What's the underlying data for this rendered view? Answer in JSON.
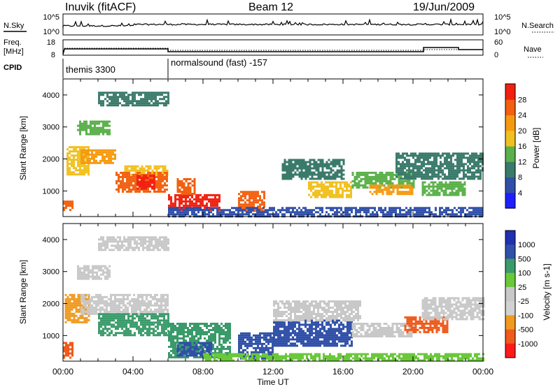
{
  "header": {
    "station": "Inuvik (fitACF)",
    "beam": "Beam 12",
    "date": "19/Jun/2009"
  },
  "nsky_panel": {
    "left_label": "N.Sky",
    "left_ticks": [
      "10^5",
      "10^0"
    ],
    "right_ticks": [
      "10^5",
      "10^0"
    ],
    "right_label": "N.Search",
    "right_legend_line": "dotted"
  },
  "freq_panel": {
    "left_label_line1": "Freq.",
    "left_label_line2": "[MHz]",
    "left_ticks": [
      18,
      8
    ],
    "right_ticks": [
      60,
      0
    ],
    "right_label": "Nave",
    "right_legend_line": "dotted"
  },
  "cpid_panel": {
    "label": "CPID",
    "segments": [
      {
        "start_h": 0,
        "end_h": 6,
        "name": "themis 3300"
      },
      {
        "start_h": 6,
        "end_h": 24,
        "name": "normalsound (fast) -157"
      }
    ]
  },
  "x_axis": {
    "label": "Time UT",
    "ticks": [
      "00:00",
      "04:00",
      "08:00",
      "12:00",
      "16:00",
      "20:00",
      "00:00"
    ],
    "range_hours": [
      0,
      24
    ]
  },
  "colors": {
    "power": [
      "#1e1eff",
      "#2f4fa8",
      "#3a7a6a",
      "#5ab04a",
      "#f0c020",
      "#f59a10",
      "#f26010",
      "#f22010"
    ],
    "velocity": [
      "#ff1a1a",
      "#f05a1a",
      "#f09a20",
      "#d2d2d2",
      "#c8c8c8",
      "#6ac83a",
      "#3a9a6a",
      "#2f4fa8",
      "#2030b0"
    ]
  },
  "chart_data": [
    {
      "type": "heatmap",
      "title": "Power",
      "ylabel": "Slant Range [km]",
      "xlabel": "Time UT",
      "ylim": [
        200,
        4500
      ],
      "y_ticks": [
        1000,
        2000,
        3000,
        4000
      ],
      "colorbar_label": "Power [dB]",
      "colorbar_ticks": [
        4,
        8,
        12,
        16,
        20,
        24,
        28
      ],
      "colorbar_range": [
        0,
        30
      ],
      "regions": [
        {
          "t0": 0.0,
          "t1": 0.6,
          "r0": 400,
          "r1": 700,
          "value": 26
        },
        {
          "t0": 0.2,
          "t1": 1.5,
          "r0": 1500,
          "r1": 2400,
          "value": 16
        },
        {
          "t0": 1.0,
          "t1": 3.0,
          "r0": 1900,
          "r1": 2300,
          "value": 22
        },
        {
          "t0": 0.8,
          "t1": 2.7,
          "r0": 2800,
          "r1": 3200,
          "value": 14
        },
        {
          "t0": 3.5,
          "t1": 6.0,
          "r0": 1500,
          "r1": 1800,
          "value": 18
        },
        {
          "t0": 3.0,
          "t1": 6.0,
          "r0": 1000,
          "r1": 1600,
          "value": 24
        },
        {
          "t0": 4.2,
          "t1": 5.2,
          "r0": 1100,
          "r1": 1500,
          "value": 28
        },
        {
          "t0": 6.0,
          "t1": 9.0,
          "r0": 400,
          "r1": 900,
          "value": 28
        },
        {
          "t0": 6.5,
          "t1": 7.5,
          "r0": 900,
          "r1": 1400,
          "value": 26
        },
        {
          "t0": 10.0,
          "t1": 11.5,
          "r0": 400,
          "r1": 1000,
          "value": 24
        },
        {
          "t0": 2.0,
          "t1": 6.0,
          "r0": 3700,
          "r1": 4100,
          "value": 8
        },
        {
          "t0": 6.0,
          "t1": 24.0,
          "r0": 200,
          "r1": 500,
          "value": 6
        },
        {
          "t0": 12.5,
          "t1": 16.0,
          "r0": 1400,
          "r1": 2000,
          "value": 10
        },
        {
          "t0": 14.0,
          "t1": 16.5,
          "r0": 800,
          "r1": 1300,
          "value": 18
        },
        {
          "t0": 16.5,
          "t1": 20.0,
          "r0": 1100,
          "r1": 1600,
          "value": 14
        },
        {
          "t0": 17.5,
          "t1": 20.0,
          "r0": 900,
          "r1": 1200,
          "value": 22
        },
        {
          "t0": 19.0,
          "t1": 24.0,
          "r0": 1400,
          "r1": 2200,
          "value": 10
        },
        {
          "t0": 20.5,
          "t1": 23.0,
          "r0": 900,
          "r1": 1300,
          "value": 14
        }
      ]
    },
    {
      "type": "heatmap",
      "title": "Velocity",
      "ylabel": "Slant Range [km]",
      "xlabel": "Time UT",
      "ylim": [
        200,
        4500
      ],
      "y_ticks": [
        1000,
        2000,
        3000,
        4000
      ],
      "colorbar_label": "Velocity [m s-1]",
      "colorbar_ticks": [
        "1000",
        "500",
        "100",
        "25",
        "-25",
        "-100",
        "-500",
        "-1000"
      ],
      "colorbar_range": [
        -1000,
        1000
      ],
      "regions": [
        {
          "t0": 0.0,
          "t1": 0.6,
          "r0": 300,
          "r1": 800,
          "value": -300
        },
        {
          "t0": 0.1,
          "t1": 1.5,
          "r0": 1400,
          "r1": 2300,
          "value": -60
        },
        {
          "t0": 1.0,
          "t1": 6.0,
          "r0": 1700,
          "r1": 2300,
          "value": 0
        },
        {
          "t0": 0.8,
          "t1": 2.7,
          "r0": 2800,
          "r1": 3200,
          "value": 0
        },
        {
          "t0": 2.0,
          "t1": 6.0,
          "r0": 1000,
          "r1": 1700,
          "value": 150
        },
        {
          "t0": 6.0,
          "t1": 9.5,
          "r0": 300,
          "r1": 1400,
          "value": 150
        },
        {
          "t0": 6.5,
          "t1": 8.5,
          "r0": 400,
          "r1": 800,
          "value": 400
        },
        {
          "t0": 10.0,
          "t1": 12.0,
          "r0": 300,
          "r1": 1100,
          "value": 300
        },
        {
          "t0": 2.0,
          "t1": 6.0,
          "r0": 3700,
          "r1": 4100,
          "value": 0
        },
        {
          "t0": 12.0,
          "t1": 16.5,
          "r0": 700,
          "r1": 1500,
          "value": 300
        },
        {
          "t0": 12.0,
          "t1": 17.0,
          "r0": 1500,
          "r1": 2100,
          "value": 0
        },
        {
          "t0": 16.5,
          "t1": 20.0,
          "r0": 1000,
          "r1": 1400,
          "value": 0
        },
        {
          "t0": 19.5,
          "t1": 22.0,
          "r0": 1100,
          "r1": 1600,
          "value": -300
        },
        {
          "t0": 20.5,
          "t1": 24.0,
          "r0": 1500,
          "r1": 2200,
          "value": 0
        },
        {
          "t0": 8.0,
          "t1": 24.0,
          "r0": 200,
          "r1": 450,
          "value": 60
        }
      ]
    }
  ]
}
